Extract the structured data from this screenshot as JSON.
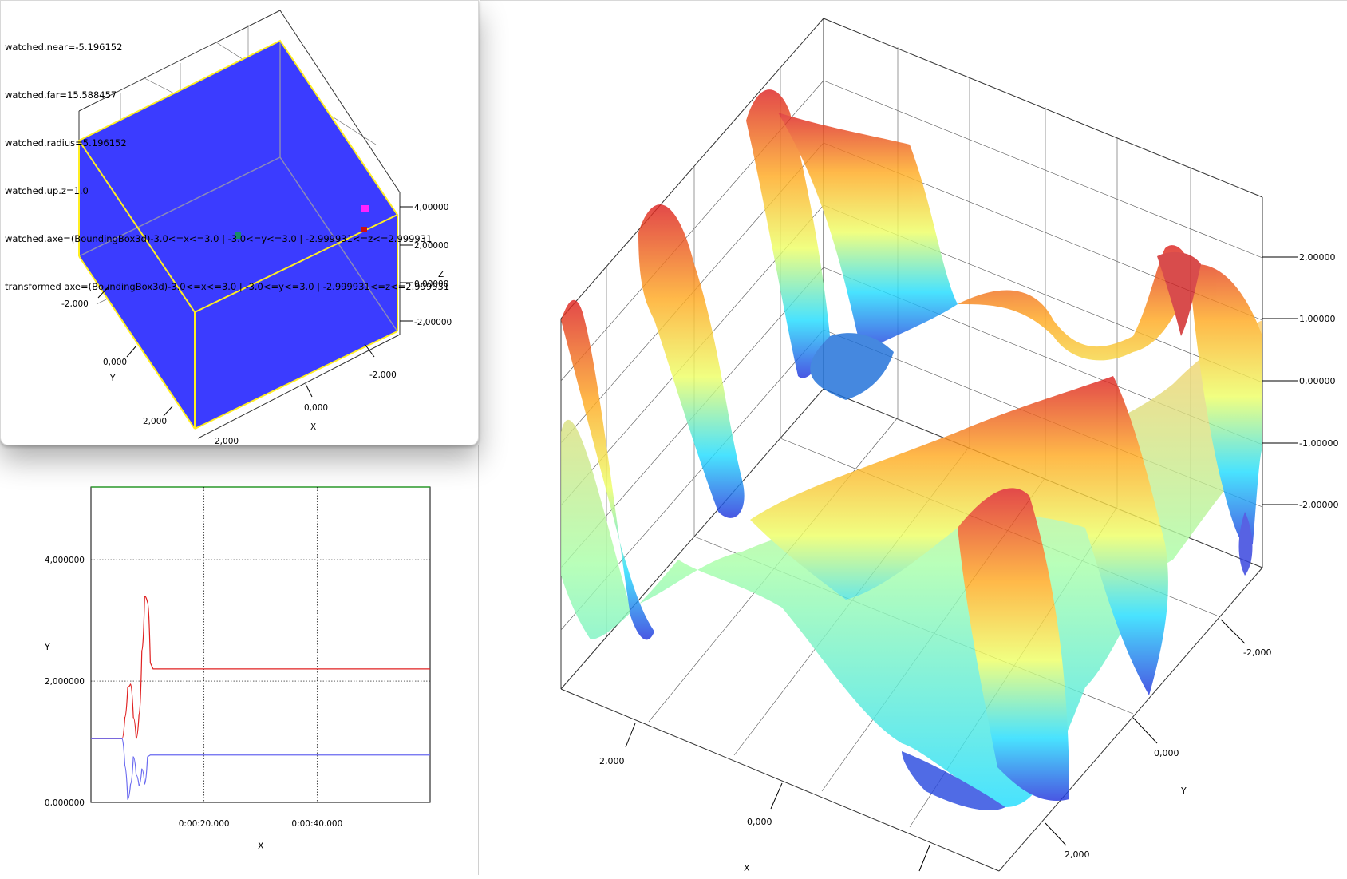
{
  "overview": {
    "info_lines": [
      "watched.near=-5.196152",
      "watched.far=15.588457",
      "watched.radius=5.196152",
      "watched.up.z=1.0",
      "watched.axe=(BoundingBox3d)-3.0<=x<=3.0 | -3.0<=y<=3.0 | -2.999931<=z<=2.999931",
      "transformed axe=(BoundingBox3d)-3.0<=x<=3.0 | -3.0<=y<=3.0 | -2.999931<=z<=2.999931"
    ],
    "x_ticks": [
      "-2,000",
      "0,000",
      "2,000"
    ],
    "y_ticks": [
      "-2,000",
      "0,000",
      "2,000"
    ],
    "z_ticks": [
      "4,00000",
      "2,00000",
      "0,00000",
      "-2,00000"
    ],
    "x_label": "X",
    "y_label": "Y",
    "z_label": "Z",
    "cube_color": "#3b3cff",
    "edge_color": "#ffee22",
    "points": [
      {
        "name": "center-point",
        "color": "#1a8a6a"
      },
      {
        "name": "magenta-point",
        "color": "#ff22ff"
      },
      {
        "name": "red-point",
        "color": "#cc1111"
      }
    ]
  },
  "surface": {
    "x_label": "X",
    "y_label": "Y",
    "x_ticks": [
      "2,000",
      "0,000"
    ],
    "y_ticks": [
      "-2,000",
      "0,000",
      "2,000"
    ],
    "z_ticks": [
      "2,00000",
      "1,00000",
      "0,00000",
      "-1,00000",
      "-2,00000"
    ],
    "colormap": [
      "#2233dd",
      "#22ddff",
      "#eeff66",
      "#ffaa22",
      "#dd2222"
    ]
  },
  "chart_data": {
    "type": "line",
    "x_ticks": [
      "0:00:20.000",
      "0:00:40.000"
    ],
    "y_ticks": [
      "0,000000",
      "2,000000",
      "4,000000"
    ],
    "xlabel": "X",
    "ylabel": "Y",
    "ylim": [
      0,
      5.2
    ],
    "xlim": [
      0,
      60
    ],
    "grid": true,
    "series": [
      {
        "color": "#e02020",
        "x": [
          0,
          5.5,
          6,
          6.5,
          7,
          7.5,
          8,
          8.5,
          9,
          9.5,
          10,
          10.5,
          11,
          60
        ],
        "y": [
          1.05,
          1.05,
          1.4,
          1.9,
          1.95,
          1.4,
          1.05,
          1.45,
          2.5,
          3.4,
          3.3,
          2.3,
          2.2,
          2.2
        ]
      },
      {
        "color": "#6a6af0",
        "x": [
          0,
          5.5,
          6,
          6.5,
          7,
          7.5,
          8,
          8.5,
          9,
          9.5,
          10,
          10.5,
          60
        ],
        "y": [
          1.05,
          1.05,
          0.6,
          0.05,
          0.3,
          0.75,
          0.45,
          0.28,
          0.55,
          0.3,
          0.75,
          0.78,
          0.78
        ]
      }
    ]
  }
}
